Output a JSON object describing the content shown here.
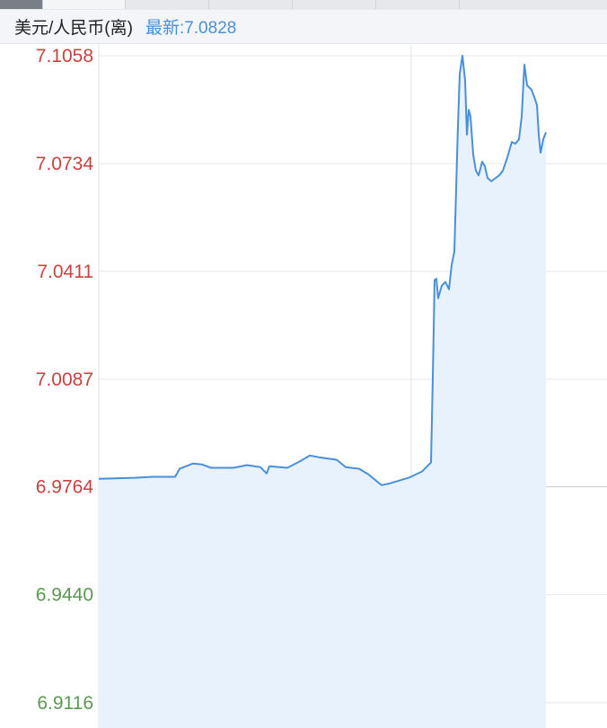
{
  "header": {
    "title": "美元/人民币(离)",
    "latest_label": "最新:7.0828"
  },
  "tabs": [
    {
      "state": "active"
    },
    {
      "state": "inactive"
    },
    {
      "state": "inactive"
    },
    {
      "state": "inactive"
    },
    {
      "state": "inactive"
    },
    {
      "state": "inactive"
    }
  ],
  "chart_data": {
    "type": "area",
    "title": "",
    "xlabel": "",
    "ylabel": "",
    "line_color": "#4a90d9",
    "fill_color": "#e8f2fc",
    "up_color": "#c8423e",
    "down_color": "#5a9a50",
    "ylim": [
      6.904,
      7.1085
    ],
    "xlim": [
      0,
      566
    ],
    "grid": true,
    "x_gridlines": [
      348
    ],
    "y_ticks": [
      "7.1058",
      "7.0734",
      "7.0411",
      "7.0087",
      "6.9764",
      "6.9440",
      "6.9116"
    ],
    "reference_value": 6.9764,
    "x": [
      0,
      40,
      60,
      85,
      90,
      105,
      115,
      125,
      150,
      165,
      180,
      187,
      190,
      210,
      225,
      235,
      245,
      265,
      275,
      290,
      300,
      315,
      325,
      335,
      345,
      360,
      370,
      372,
      374,
      376,
      378,
      382,
      386,
      390,
      393,
      396,
      400,
      402,
      405,
      408,
      410,
      412,
      414,
      417,
      420,
      423,
      427,
      430,
      433,
      437,
      442,
      446,
      450,
      455,
      460,
      464,
      468,
      471,
      474,
      477,
      482,
      485,
      488,
      490,
      492,
      495,
      498
    ],
    "values": [
      6.9788,
      6.9791,
      6.9794,
      6.9794,
      6.9818,
      6.9834,
      6.9831,
      6.9821,
      6.9821,
      6.9829,
      6.9823,
      6.9804,
      6.9826,
      6.9821,
      6.9842,
      6.9858,
      6.9853,
      6.9845,
      6.9823,
      6.9818,
      6.9802,
      6.9769,
      6.9775,
      6.9783,
      6.9791,
      6.981,
      6.9837,
      7.0093,
      7.0384,
      7.0389,
      7.033,
      7.0368,
      7.0379,
      7.0357,
      7.043,
      7.047,
      7.0848,
      7.1004,
      7.1058,
      7.0983,
      7.0821,
      7.0896,
      7.0875,
      7.0761,
      7.0713,
      7.0699,
      7.074,
      7.0726,
      7.0691,
      7.0681,
      7.0691,
      7.0699,
      7.0713,
      7.0753,
      7.0799,
      7.0794,
      7.0807,
      7.0875,
      7.1031,
      7.0969,
      7.0956,
      7.0934,
      7.091,
      7.0821,
      7.0767,
      7.0807,
      7.0828
    ]
  }
}
